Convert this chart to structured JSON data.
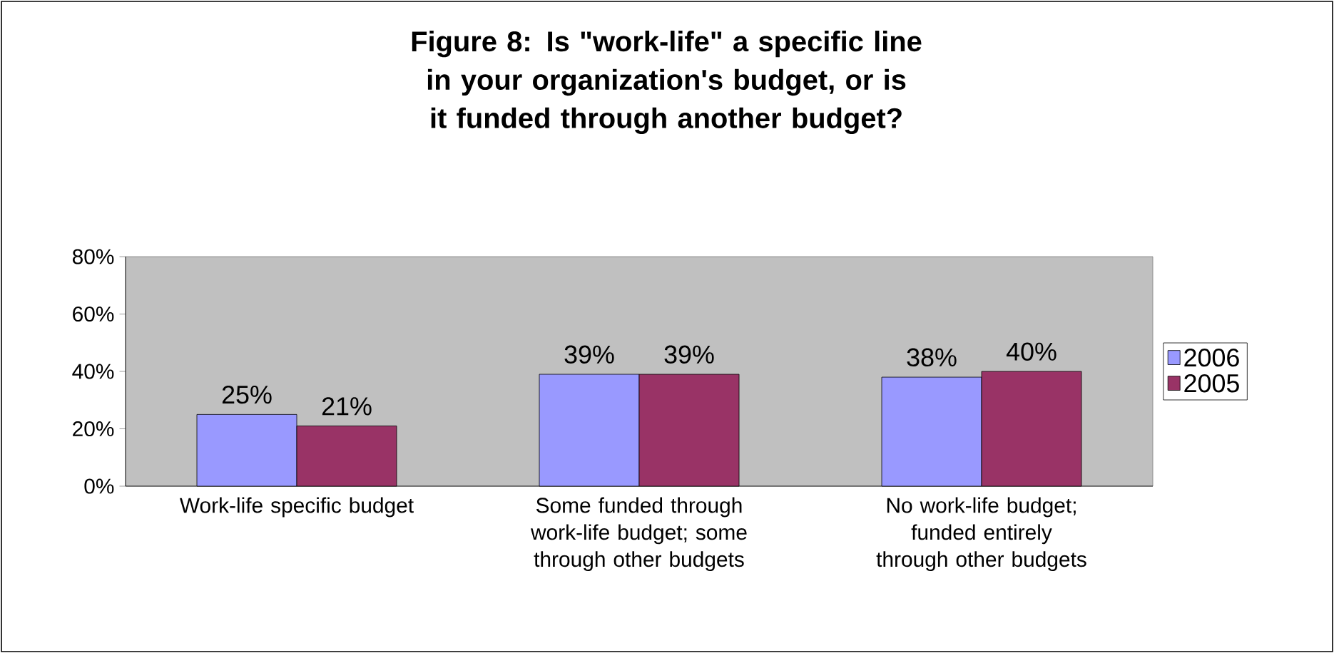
{
  "chart_data": {
    "type": "bar",
    "title": "Figure 8: Is \"work-life\" a specific line in your organization's budget, or is it funded through another budget?",
    "categories": [
      "Work-life specific budget",
      "Some funded through work-life budget; some through other budgets",
      "No work-life budget; funded entirely through other budgets"
    ],
    "series": [
      {
        "name": "2006",
        "color": "#9999ff",
        "values": [
          25,
          39,
          38
        ],
        "value_labels": [
          "25%",
          "39%",
          "38%"
        ]
      },
      {
        "name": "2005",
        "color": "#993366",
        "values": [
          21,
          39,
          40
        ],
        "value_labels": [
          "21%",
          "39%",
          "40%"
        ]
      }
    ],
    "ylim": [
      0,
      80
    ],
    "yticks": [
      {
        "value": 0,
        "label": "0%"
      },
      {
        "value": 20,
        "label": "20%"
      },
      {
        "value": 40,
        "label": "40%"
      },
      {
        "value": 60,
        "label": "60%"
      },
      {
        "value": 80,
        "label": "80%"
      }
    ],
    "legend": "right"
  }
}
